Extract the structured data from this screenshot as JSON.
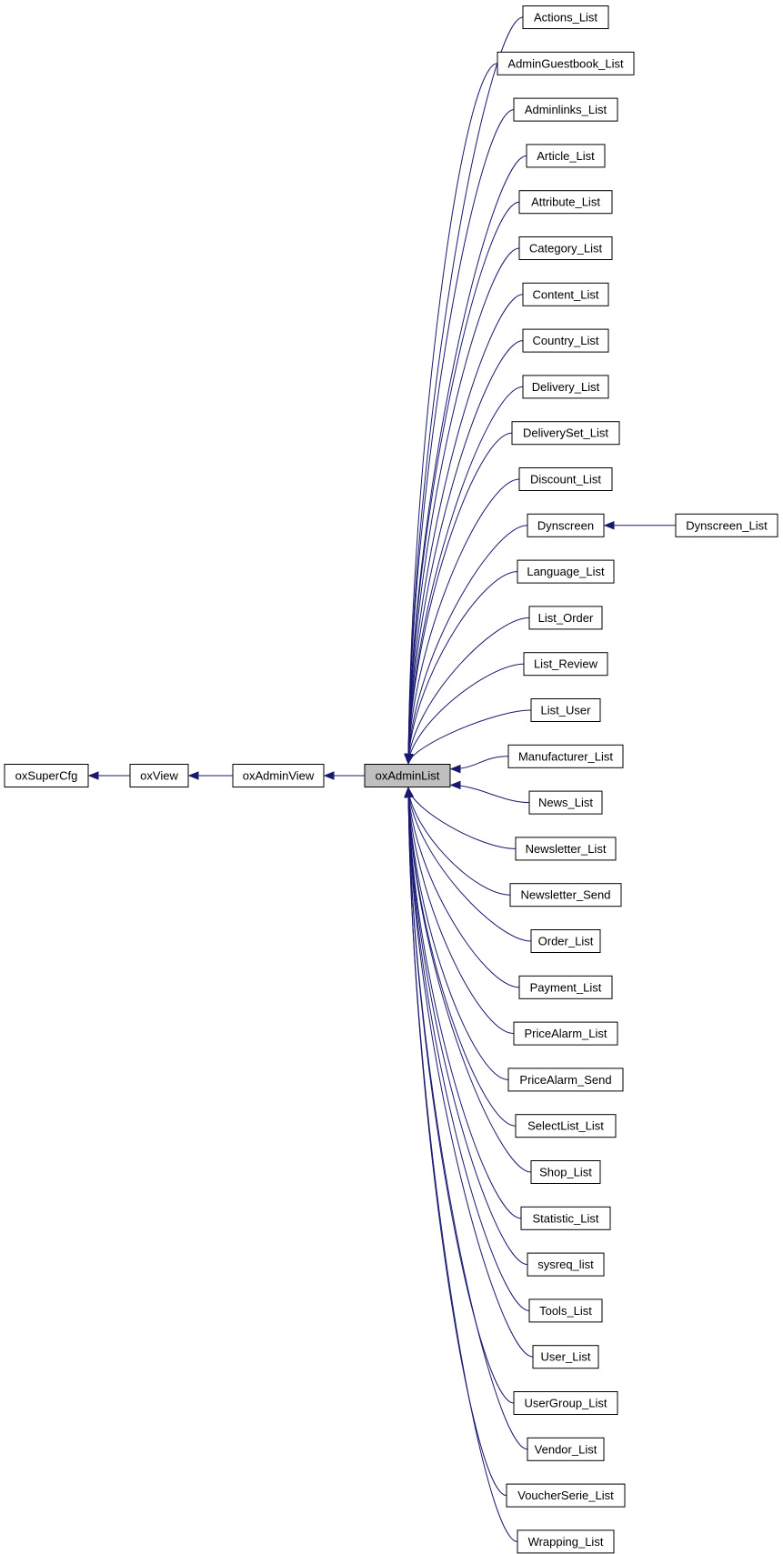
{
  "diagram": {
    "kind": "class inheritance graph",
    "focus_class": "oxAdminList",
    "edge_color": "#191970",
    "focus_fill": "#bfbfbf",
    "ancestors": [
      "oxSuperCfg",
      "oxView",
      "oxAdminView"
    ],
    "subclasses": [
      "Actions_List",
      "AdminGuestbook_List",
      "Adminlinks_List",
      "Article_List",
      "Attribute_List",
      "Category_List",
      "Content_List",
      "Country_List",
      "Delivery_List",
      "DeliverySet_List",
      "Discount_List",
      "Dynscreen",
      "Language_List",
      "List_Order",
      "List_Review",
      "List_User",
      "Manufacturer_List",
      "News_List",
      "Newsletter_List",
      "Newsletter_Send",
      "Order_List",
      "Payment_List",
      "PriceAlarm_List",
      "PriceAlarm_Send",
      "SelectList_List",
      "Shop_List",
      "Statistic_List",
      "sysreq_list",
      "Tools_List",
      "User_List",
      "UserGroup_List",
      "Vendor_List",
      "VoucherSerie_List",
      "Wrapping_List"
    ],
    "sub_subclass": {
      "name": "Dynscreen_List",
      "parent": "Dynscreen"
    }
  }
}
